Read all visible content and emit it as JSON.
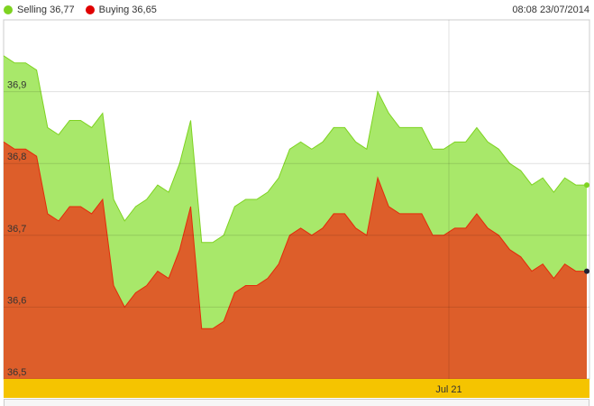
{
  "legend": {
    "selling_label": "Selling 36,77",
    "buying_label": "Buying 36,65"
  },
  "timestamp": "08:08 23/07/2014",
  "colors": {
    "selling": "#a8e86a",
    "selling_line": "#7ed321",
    "buying": "#dd5e2a",
    "buying_line": "#e32b0b",
    "xaxis_band": "#f5c400",
    "selling_dot": "#7ed321",
    "buying_dot": "#e00000"
  },
  "chart_data": {
    "type": "area",
    "ylim": [
      36.5,
      37.0
    ],
    "yticks": [
      "36,5",
      "36,6",
      "36,7",
      "36,8",
      "36,9"
    ],
    "ytick_values": [
      36.5,
      36.6,
      36.7,
      36.8,
      36.9
    ],
    "xticks": [
      "Jul 21"
    ],
    "grid": true,
    "legend_placement": "top-left",
    "series": [
      {
        "name": "Selling",
        "values": [
          36.95,
          36.94,
          36.94,
          36.93,
          36.85,
          36.84,
          36.86,
          36.86,
          36.85,
          36.87,
          36.75,
          36.72,
          36.74,
          36.75,
          36.77,
          36.76,
          36.8,
          36.86,
          36.69,
          36.69,
          36.7,
          36.74,
          36.75,
          36.75,
          36.76,
          36.78,
          36.82,
          36.83,
          36.82,
          36.83,
          36.85,
          36.85,
          36.83,
          36.82,
          36.9,
          36.87,
          36.85,
          36.85,
          36.85,
          36.82,
          36.82,
          36.83,
          36.83,
          36.85,
          36.83,
          36.82,
          36.8,
          36.79,
          36.77,
          36.78,
          36.76,
          36.78,
          36.77,
          36.77
        ]
      },
      {
        "name": "Buying",
        "values": [
          36.83,
          36.82,
          36.82,
          36.81,
          36.73,
          36.72,
          36.74,
          36.74,
          36.73,
          36.75,
          36.63,
          36.6,
          36.62,
          36.63,
          36.65,
          36.64,
          36.68,
          36.74,
          36.57,
          36.57,
          36.58,
          36.62,
          36.63,
          36.63,
          36.64,
          36.66,
          36.7,
          36.71,
          36.7,
          36.71,
          36.73,
          36.73,
          36.71,
          36.7,
          36.78,
          36.74,
          36.73,
          36.73,
          36.73,
          36.7,
          36.7,
          36.71,
          36.71,
          36.73,
          36.71,
          36.7,
          36.68,
          36.67,
          36.65,
          36.66,
          36.64,
          36.66,
          36.65,
          36.65
        ]
      }
    ]
  }
}
